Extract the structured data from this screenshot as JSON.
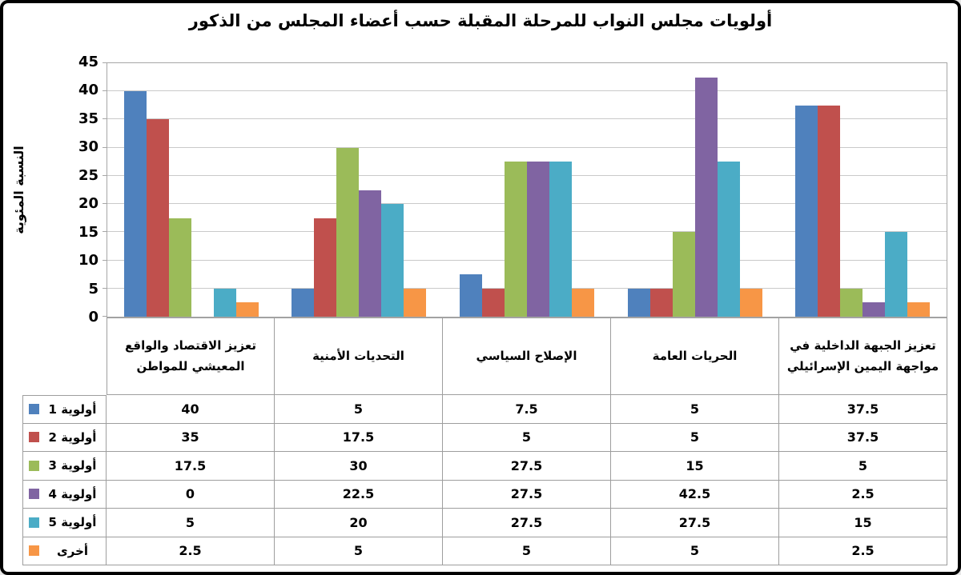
{
  "chart_data": {
    "type": "bar",
    "title": "أولويات مجلس النواب للمرحلة المقبلة حسب أعضاء المجلس من الذكور",
    "ylabel": "النسبة المئوية",
    "xlabel": "",
    "ylim": [
      0,
      45
    ],
    "yticks": [
      0,
      5,
      10,
      15,
      20,
      25,
      30,
      35,
      40,
      45
    ],
    "grid": true,
    "legend_position": "data-table-left-column",
    "data_table_shown": true,
    "categories": [
      "تعزيز الاقتصاد والواقع المعيشي للمواطن",
      "التحديات الأمنية",
      "الإصلاح السياسي",
      "الحريات العامة",
      "تعزيز الجبهة الداخلية في مواجهة اليمين الإسرائيلي"
    ],
    "series": [
      {
        "name": "أولوية 1",
        "color": "#4F81BD",
        "values": [
          40,
          5,
          7.5,
          5,
          37.5
        ]
      },
      {
        "name": "أولوية 2",
        "color": "#C0504D",
        "values": [
          35,
          17.5,
          5,
          5,
          37.5
        ]
      },
      {
        "name": "أولوية 3",
        "color": "#9BBB59",
        "values": [
          17.5,
          30,
          27.5,
          15,
          5
        ]
      },
      {
        "name": "أولوية 4",
        "color": "#8064A2",
        "values": [
          0,
          22.5,
          27.5,
          42.5,
          2.5
        ]
      },
      {
        "name": "أولوية 5",
        "color": "#4BACC6",
        "values": [
          5,
          20,
          27.5,
          27.5,
          15
        ]
      },
      {
        "name": "أخرى",
        "color": "#F79646",
        "values": [
          2.5,
          5,
          5,
          5,
          2.5
        ]
      }
    ]
  },
  "style": {
    "frame_border": "#000000",
    "background": "#FFFFFF",
    "grid_color": "#C9C9C9",
    "axis_color": "#A6A6A6",
    "table_border": "#9E9E9E",
    "text_color": "#000000"
  }
}
